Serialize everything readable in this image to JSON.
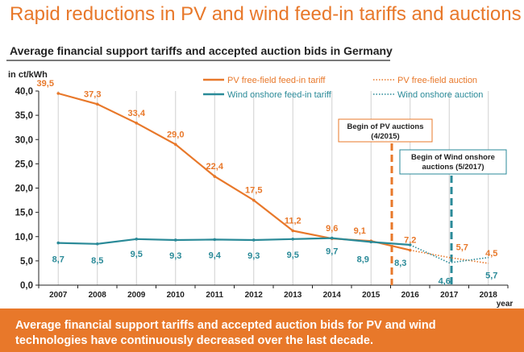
{
  "slide": {
    "title": "Rapid reductions in PV and wind feed-in tariffs and auctions",
    "subtitle": "Average financial support tariffs and accepted auction bids in Germany",
    "footer": "Average financial support tariffs and accepted auction bids for PV and wind technologies have continuously decreased over the last decade."
  },
  "colors": {
    "orange": "#e8782a",
    "teal": "#2a8a98",
    "grid": "#d0d0d0",
    "axis": "#222222"
  },
  "chart_data": {
    "type": "line",
    "title": "Average financial support tariffs and accepted auction bids in Germany",
    "ylabel": "in ct/kWh",
    "xlabel": "year",
    "ylim": [
      0,
      40
    ],
    "yticks": [
      "0,0",
      "5,0",
      "10,0",
      "15,0",
      "20,0",
      "25,0",
      "30,0",
      "35,0",
      "40,0"
    ],
    "ytick_values": [
      0,
      5,
      10,
      15,
      20,
      25,
      30,
      35,
      40
    ],
    "categories": [
      "2007",
      "2008",
      "2009",
      "2010",
      "2011",
      "2012",
      "2013",
      "2014",
      "2015",
      "2016",
      "2017",
      "2018"
    ],
    "series": [
      {
        "name": "PV free-field feed-in tariff",
        "style": "solid",
        "color": "#e8782a",
        "x": [
          "2007",
          "2008",
          "2009",
          "2010",
          "2011",
          "2012",
          "2013",
          "2014",
          "2015",
          "2016"
        ],
        "values": [
          39.5,
          37.3,
          33.4,
          29.0,
          22.4,
          17.5,
          11.2,
          9.6,
          9.1,
          7.2
        ],
        "labels": [
          "39,5",
          "37,3",
          "33,4",
          "29,0",
          "22,4",
          "17,5",
          "11,2",
          "9,6",
          "9,1",
          "7,2"
        ]
      },
      {
        "name": "Wind onshore feed-in tariff",
        "style": "solid",
        "color": "#2a8a98",
        "x": [
          "2007",
          "2008",
          "2009",
          "2010",
          "2011",
          "2012",
          "2013",
          "2014",
          "2015",
          "2016"
        ],
        "values": [
          8.7,
          8.5,
          9.5,
          9.3,
          9.4,
          9.3,
          9.5,
          9.7,
          8.9,
          8.3
        ],
        "labels": [
          "8,7",
          "8,5",
          "9,5",
          "9,3",
          "9,4",
          "9,3",
          "9,5",
          "9,7",
          "8,9",
          "8,3"
        ]
      },
      {
        "name": "PV free-field auction",
        "style": "dotted",
        "color": "#e8782a",
        "x": [
          "2016",
          "2017",
          "2018"
        ],
        "values": [
          7.2,
          5.7,
          4.5
        ],
        "labels": [
          "",
          "5,7",
          "4,5"
        ]
      },
      {
        "name": "Wind onshore auction",
        "style": "dotted",
        "color": "#2a8a98",
        "x": [
          "2016",
          "2017",
          "2018"
        ],
        "values": [
          8.3,
          4.6,
          5.7
        ],
        "labels": [
          "",
          "4,6",
          "5,7"
        ]
      }
    ],
    "annotations": [
      {
        "text": "Begin of PV auctions (4/2015)",
        "lines": [
          "Begin of PV auctions",
          "(4/2015)"
        ],
        "at": "2015",
        "color": "#e8782a"
      },
      {
        "text": "Begin of Wind onshore auctions (5/2017)",
        "lines": [
          "Begin of Wind onshore",
          "auctions (5/2017)"
        ],
        "at": "2017",
        "color": "#2a8a98"
      }
    ],
    "legend": "top-right",
    "grid": "vertical"
  }
}
